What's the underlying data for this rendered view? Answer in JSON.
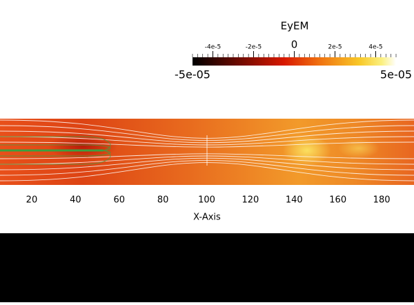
{
  "colorbar": {
    "title": "EyEM",
    "range": [
      {
        "value": -5e-05,
        "label": "-5e-05"
      },
      {
        "value": 5e-05,
        "label": "5e-05"
      }
    ],
    "ticks": [
      {
        "value": -4e-05,
        "label": "-4e-5"
      },
      {
        "value": -2e-05,
        "label": "-2e-5"
      },
      0,
      {
        "value": 2e-05,
        "label": "2e-5"
      },
      {
        "value": 4e-05,
        "label": "4e-5"
      }
    ]
  },
  "x_axis": {
    "label": "X-Axis",
    "range": [
      5.5,
      194.8
    ],
    "ticks": [
      20,
      40,
      60,
      80,
      100,
      120,
      140,
      160,
      180
    ]
  }
}
